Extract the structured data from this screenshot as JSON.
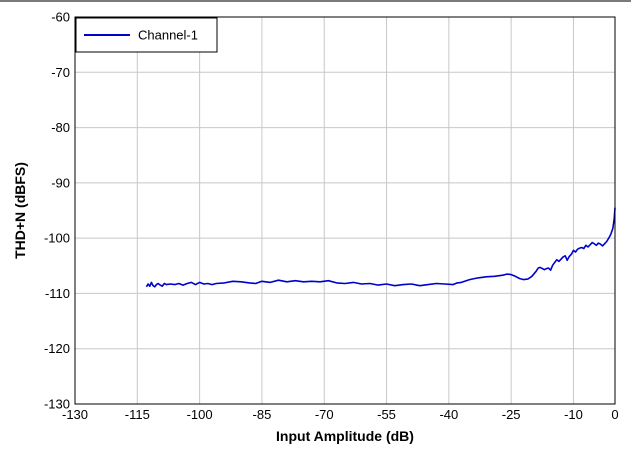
{
  "chart_data": {
    "type": "line",
    "xlabel": "Input Amplitude (dB)",
    "ylabel": "THD+N (dBFS)",
    "xlim": [
      -130,
      0
    ],
    "ylim": [
      -130,
      -60
    ],
    "x_ticks": [
      -130,
      -115,
      -100,
      -85,
      -70,
      -55,
      -40,
      -25,
      -10,
      0
    ],
    "y_ticks": [
      -60,
      -70,
      -80,
      -90,
      -100,
      -110,
      -120,
      -130
    ],
    "grid": true,
    "legend_position": "top-left",
    "series": [
      {
        "name": "Channel-1",
        "color": "#0000cc",
        "x": [
          -112.8,
          -112.4,
          -112.0,
          -111.6,
          -111.2,
          -110.8,
          -110.4,
          -110.0,
          -109.5,
          -109.0,
          -108.5,
          -108.0,
          -107.0,
          -106.0,
          -105.0,
          -104.0,
          -103.0,
          -102.0,
          -101.0,
          -100.0,
          -99.0,
          -98.0,
          -97.0,
          -96.0,
          -94.0,
          -92.0,
          -90.0,
          -88.0,
          -86.5,
          -85.0,
          -83.0,
          -81.0,
          -79.0,
          -77.0,
          -75.0,
          -73.0,
          -71.0,
          -69.0,
          -67.0,
          -65.0,
          -63.0,
          -61.0,
          -59.0,
          -57.0,
          -55.0,
          -53.0,
          -51.0,
          -49.0,
          -47.0,
          -45.0,
          -43.0,
          -41.0,
          -39.0,
          -38.0,
          -37.0,
          -35.0,
          -33.0,
          -31.0,
          -29.0,
          -27.0,
          -26.0,
          -25.0,
          -24.0,
          -23.0,
          -22.0,
          -21.0,
          -20.0,
          -19.0,
          -18.5,
          -18.0,
          -17.0,
          -16.5,
          -16.0,
          -15.5,
          -15.0,
          -14.0,
          -13.5,
          -13.0,
          -12.5,
          -12.0,
          -11.5,
          -11.0,
          -10.5,
          -10.0,
          -9.5,
          -9.0,
          -8.5,
          -8.0,
          -7.5,
          -7.0,
          -6.5,
          -6.0,
          -5.5,
          -5.0,
          -4.5,
          -4.0,
          -3.5,
          -3.0,
          -2.5,
          -2.0,
          -1.5,
          -1.0,
          -0.5,
          -0.2,
          0.0
        ],
        "y": [
          -108.8,
          -108.3,
          -108.7,
          -108.0,
          -108.6,
          -108.8,
          -108.4,
          -108.2,
          -108.5,
          -108.7,
          -108.2,
          -108.4,
          -108.3,
          -108.4,
          -108.2,
          -108.5,
          -108.2,
          -108.0,
          -108.4,
          -108.0,
          -108.3,
          -108.2,
          -108.4,
          -108.2,
          -108.1,
          -107.8,
          -107.9,
          -108.1,
          -108.2,
          -107.8,
          -108.0,
          -107.6,
          -107.9,
          -107.7,
          -107.9,
          -107.8,
          -107.9,
          -107.7,
          -108.1,
          -108.2,
          -108.0,
          -108.3,
          -108.2,
          -108.5,
          -108.3,
          -108.6,
          -108.4,
          -108.3,
          -108.6,
          -108.4,
          -108.2,
          -108.3,
          -108.4,
          -108.1,
          -108.0,
          -107.5,
          -107.2,
          -107.0,
          -106.9,
          -106.7,
          -106.5,
          -106.6,
          -106.9,
          -107.3,
          -107.5,
          -107.4,
          -106.9,
          -106.0,
          -105.4,
          -105.3,
          -105.7,
          -105.5,
          -105.4,
          -105.8,
          -104.9,
          -103.9,
          -104.2,
          -103.8,
          -103.4,
          -103.2,
          -104.0,
          -103.3,
          -102.9,
          -102.2,
          -102.5,
          -102.0,
          -101.8,
          -101.7,
          -101.9,
          -101.3,
          -101.6,
          -101.2,
          -100.8,
          -101.0,
          -101.3,
          -100.9,
          -101.1,
          -101.4,
          -101.0,
          -100.6,
          -100.0,
          -99.3,
          -98.2,
          -96.5,
          -94.5
        ]
      }
    ]
  }
}
